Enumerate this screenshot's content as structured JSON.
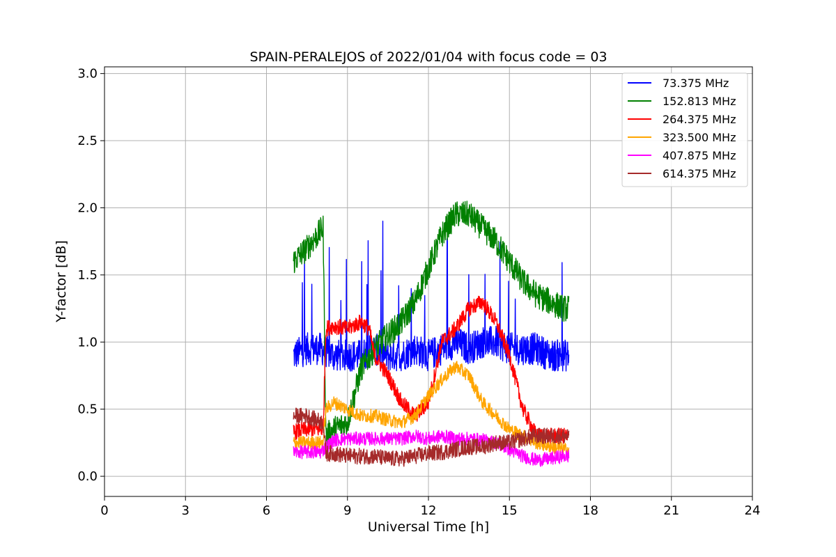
{
  "chart_data": {
    "type": "line",
    "title": "SPAIN-PERALEJOS of 2022/01/04 with focus code = 03",
    "xlabel": "Universal Time [h]",
    "ylabel": "Y-factor [dB]",
    "xlim": [
      0,
      24
    ],
    "ylim": [
      -0.15,
      3.05
    ],
    "xticks": [
      0,
      3,
      6,
      9,
      12,
      15,
      18,
      21,
      24
    ],
    "yticks": [
      0.0,
      0.5,
      1.0,
      1.5,
      2.0,
      2.5,
      3.0
    ],
    "xtick_labels": [
      "0",
      "3",
      "6",
      "9",
      "12",
      "15",
      "18",
      "21",
      "24"
    ],
    "ytick_labels": [
      "0.0",
      "0.5",
      "1.0",
      "1.5",
      "2.0",
      "2.5",
      "3.0"
    ],
    "grid": true,
    "legend_position": "top-right",
    "series": [
      {
        "name": "  73.375 MHz",
        "color": "#0000ff",
        "x": [
          7.0,
          7.5,
          8.0,
          8.5,
          9.0,
          9.5,
          10.0,
          10.5,
          11.0,
          11.5,
          12.0,
          12.5,
          13.0,
          13.5,
          14.0,
          14.5,
          15.0,
          15.5,
          16.0,
          16.5,
          17.0,
          17.2
        ],
        "y": [
          0.9,
          0.95,
          0.95,
          0.9,
          0.9,
          0.9,
          0.95,
          0.9,
          0.9,
          0.95,
          0.9,
          0.95,
          1.0,
          0.95,
          1.0,
          1.0,
          0.95,
          0.95,
          0.95,
          0.9,
          0.9,
          0.9
        ],
        "noise": 0.12
      },
      {
        "name": "152.813 MHz",
        "color": "#008000",
        "x": [
          7.0,
          7.5,
          8.1,
          8.2,
          8.5,
          9.0,
          9.5,
          10.0,
          10.5,
          11.0,
          11.5,
          12.0,
          12.5,
          13.0,
          13.5,
          14.0,
          14.5,
          15.0,
          15.5,
          16.0,
          16.5,
          17.0,
          17.2
        ],
        "y": [
          1.6,
          1.7,
          1.85,
          0.3,
          0.35,
          0.4,
          0.8,
          0.95,
          1.05,
          1.15,
          1.3,
          1.55,
          1.8,
          1.95,
          1.95,
          1.85,
          1.75,
          1.6,
          1.45,
          1.35,
          1.3,
          1.25,
          1.25
        ],
        "noise": 0.1
      },
      {
        "name": "264.375 MHz",
        "color": "#ff0000",
        "x": [
          7.0,
          7.5,
          8.1,
          8.2,
          8.5,
          9.0,
          9.5,
          9.8,
          10.0,
          10.5,
          11.0,
          11.5,
          12.0,
          12.5,
          13.0,
          13.5,
          14.0,
          14.5,
          15.0,
          15.5,
          16.0,
          16.5,
          17.0,
          17.2
        ],
        "y": [
          0.33,
          0.35,
          0.35,
          1.1,
          1.12,
          1.1,
          1.15,
          1.1,
          0.9,
          0.75,
          0.55,
          0.45,
          0.55,
          1.0,
          1.1,
          1.25,
          1.3,
          1.15,
          0.9,
          0.5,
          0.3,
          0.3,
          0.3,
          0.3
        ],
        "noise": 0.06
      },
      {
        "name": "323.500 MHz",
        "color": "#ffa500",
        "x": [
          7.0,
          7.5,
          8.1,
          8.2,
          8.5,
          9.0,
          9.5,
          10.0,
          10.5,
          11.0,
          11.5,
          12.0,
          12.5,
          13.0,
          13.5,
          14.0,
          14.5,
          15.0,
          15.5,
          16.0,
          17.0,
          17.2
        ],
        "y": [
          0.25,
          0.25,
          0.25,
          0.5,
          0.55,
          0.5,
          0.45,
          0.45,
          0.42,
          0.4,
          0.45,
          0.6,
          0.72,
          0.82,
          0.75,
          0.55,
          0.45,
          0.35,
          0.3,
          0.25,
          0.2,
          0.2
        ],
        "noise": 0.05
      },
      {
        "name": "407.875 MHz",
        "color": "#ff00ff",
        "x": [
          7.0,
          7.5,
          8.0,
          8.5,
          9.0,
          9.5,
          10.0,
          10.5,
          11.0,
          11.5,
          12.0,
          12.5,
          13.0,
          13.5,
          14.0,
          14.5,
          15.0,
          15.5,
          16.0,
          16.5,
          17.0,
          17.2
        ],
        "y": [
          0.18,
          0.18,
          0.18,
          0.27,
          0.28,
          0.28,
          0.28,
          0.28,
          0.28,
          0.3,
          0.28,
          0.3,
          0.28,
          0.28,
          0.27,
          0.25,
          0.2,
          0.15,
          0.12,
          0.13,
          0.15,
          0.15
        ],
        "noise": 0.05
      },
      {
        "name": "614.375 MHz",
        "color": "#a52a2a",
        "x": [
          7.0,
          7.5,
          8.1,
          8.2,
          8.5,
          9.0,
          9.5,
          10.0,
          10.5,
          11.0,
          11.5,
          12.0,
          12.5,
          13.0,
          13.5,
          14.0,
          14.5,
          15.0,
          15.5,
          16.0,
          16.5,
          17.0,
          17.2
        ],
        "y": [
          0.45,
          0.45,
          0.4,
          0.17,
          0.17,
          0.15,
          0.15,
          0.15,
          0.13,
          0.13,
          0.15,
          0.17,
          0.18,
          0.2,
          0.22,
          0.22,
          0.25,
          0.25,
          0.28,
          0.3,
          0.3,
          0.3,
          0.3
        ],
        "noise": 0.06
      }
    ]
  }
}
